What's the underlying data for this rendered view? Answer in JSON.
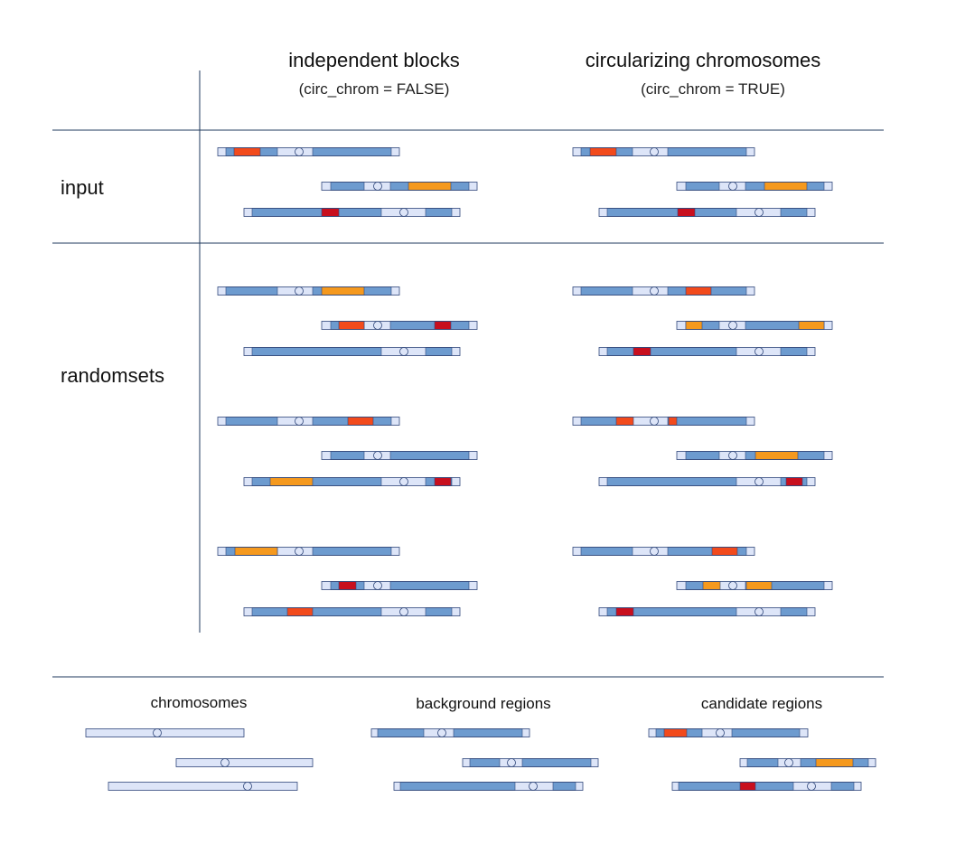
{
  "headers": {
    "independent": {
      "title": "independent blocks",
      "subtitle": "(circ_chrom = FALSE)"
    },
    "circular": {
      "title": "circularizing chromosomes",
      "subtitle": "(circ_chrom = TRUE)"
    }
  },
  "row_labels": {
    "input": "input",
    "randomsets": "randomsets"
  },
  "legend": {
    "chromosomes": "chromosomes",
    "background": "background regions",
    "candidate": "candidate regions"
  },
  "colors": {
    "chromosome_fill": "#dde5f8",
    "background_fill": "#6d9bcf",
    "outline": "#30477a",
    "candidate_orange": "#f5991e",
    "candidate_red": "#f24a1c",
    "candidate_darkred": "#c80f1e",
    "rule": "#1f3a5c"
  }
}
